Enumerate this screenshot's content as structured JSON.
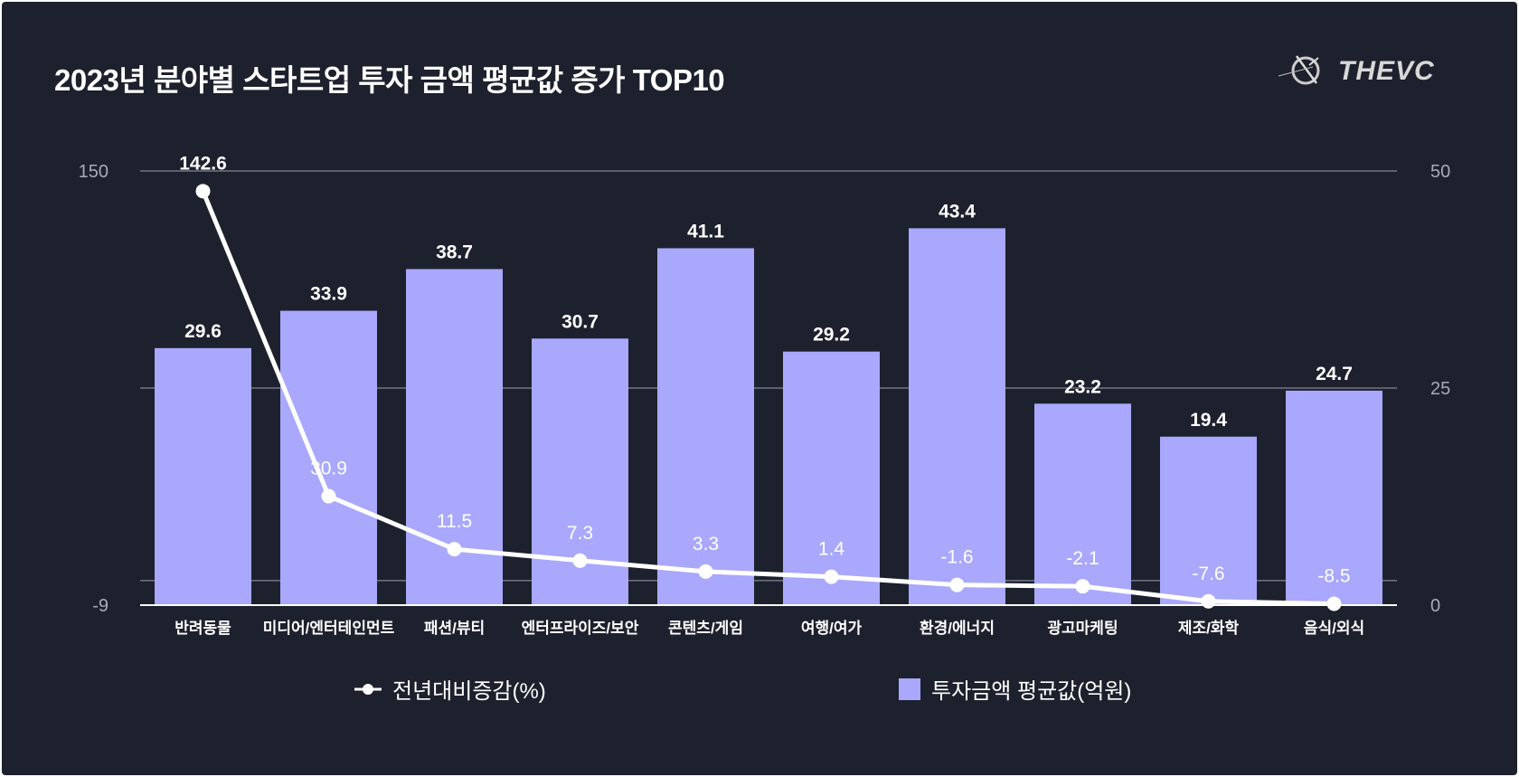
{
  "title": "2023년 분야별 스타트업 투자 금액 평균값 증가 TOP10",
  "logo": "THEVC",
  "colors": {
    "background": "#1d212d",
    "bar": "#a9a8fc",
    "line": "#ffffff",
    "axis_text": "#a6abbb"
  },
  "chart_data": {
    "type": "bar+line",
    "categories": [
      "반려동물",
      "미디어/엔터테인먼트",
      "패션/뷰티",
      "엔터프라이즈/보안",
      "콘텐츠/게임",
      "여행/여가",
      "환경/에너지",
      "광고마케팅",
      "제조/화학",
      "음식/외식"
    ],
    "series": [
      {
        "name": "전년대비증감(%)",
        "type": "line",
        "axis": "left",
        "values": [
          142.6,
          30.9,
          11.5,
          7.3,
          3.3,
          1.4,
          -1.6,
          -2.1,
          -7.6,
          -8.5
        ]
      },
      {
        "name": "투자금액 평균값(억원)",
        "type": "bar",
        "axis": "right",
        "values": [
          29.6,
          33.9,
          38.7,
          30.7,
          41.1,
          29.2,
          43.4,
          23.2,
          19.4,
          24.7
        ]
      }
    ],
    "left_axis": {
      "ylim": [
        -9,
        150
      ],
      "ticks": [
        "150",
        "-9"
      ]
    },
    "right_axis": {
      "ylim": [
        0,
        50
      ],
      "ticks": [
        "50",
        "25",
        "0"
      ]
    },
    "legend_position": "bottom",
    "grid": true
  }
}
